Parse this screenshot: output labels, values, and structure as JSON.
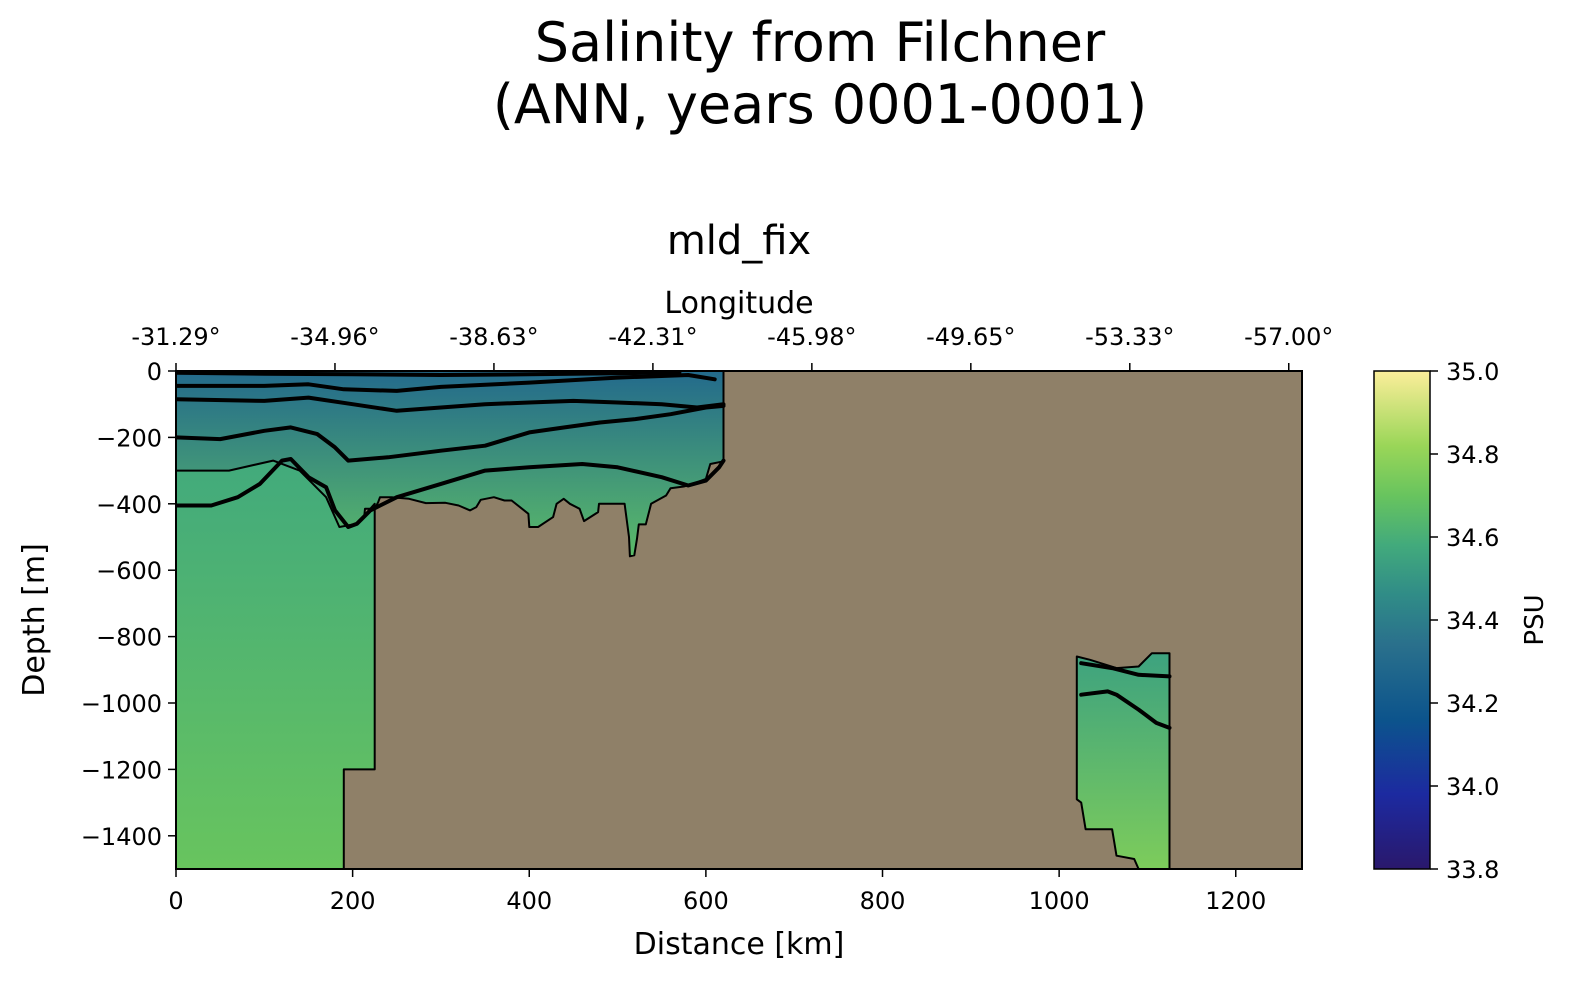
{
  "figure": {
    "title_line1": "Salinity from Filchner",
    "title_line2": "(ANN, years 0001-0001)"
  },
  "chart_data": {
    "type": "heatmap",
    "title": "mld_fix",
    "xlabel": "Distance [km]",
    "ylabel": "Depth [m]",
    "top_axis_label": "Longitude",
    "xlim": [
      0,
      1275
    ],
    "ylim": [
      -1500,
      0
    ],
    "x_ticks": [
      0,
      200,
      400,
      600,
      800,
      1000,
      1200
    ],
    "x_tick_labels": [
      "0",
      "200",
      "400",
      "600",
      "800",
      "1000",
      "1200"
    ],
    "y_ticks": [
      0,
      -200,
      -400,
      -600,
      -800,
      -1000,
      -1200,
      -1400
    ],
    "y_tick_labels": [
      "0",
      "−200",
      "−400",
      "−600",
      "−800",
      "−1000",
      "−1200",
      "−1400"
    ],
    "top_ticks": [
      0,
      180,
      360,
      540,
      720,
      900,
      1080,
      1260
    ],
    "top_tick_labels": [
      "-31.29°",
      "-34.96°",
      "-38.63°",
      "-42.31°",
      "-45.98°",
      "-49.65°",
      "-53.33°",
      "-57.00°"
    ],
    "colorbar": {
      "label": "PSU",
      "range": [
        33.8,
        35.0
      ],
      "ticks": [
        35.0,
        34.8,
        34.6,
        34.4,
        34.2,
        34.0,
        33.8
      ],
      "tick_labels": [
        "35.0",
        "34.8",
        "34.6",
        "34.4",
        "34.2",
        "34.0",
        "33.8"
      ],
      "colormap": "haline"
    },
    "land_color": "#8f8068",
    "ocean_regions": [
      {
        "name": "shelf-region",
        "top_salinity": 34.3,
        "bottom_salinity": 34.66,
        "outline": [
          [
            0,
            0
          ],
          [
            620,
            0
          ],
          [
            620,
            -272
          ],
          [
            605,
            -280
          ],
          [
            600,
            -325
          ],
          [
            585,
            -340
          ],
          [
            575,
            -348
          ],
          [
            560,
            -353
          ],
          [
            555,
            -375
          ],
          [
            538,
            -400
          ],
          [
            532,
            -462
          ],
          [
            524,
            -462
          ],
          [
            522,
            -505
          ],
          [
            519,
            -555
          ],
          [
            514,
            -558
          ],
          [
            513,
            -500
          ],
          [
            508,
            -400
          ],
          [
            495,
            -400
          ],
          [
            479,
            -400
          ],
          [
            478,
            -425
          ],
          [
            462,
            -452
          ],
          [
            457,
            -415
          ],
          [
            446,
            -400
          ],
          [
            439,
            -385
          ],
          [
            431,
            -400
          ],
          [
            427,
            -440
          ],
          [
            410,
            -470
          ],
          [
            400,
            -470
          ],
          [
            399,
            -430
          ],
          [
            380,
            -390
          ],
          [
            372,
            -390
          ],
          [
            360,
            -380
          ],
          [
            345,
            -388
          ],
          [
            340,
            -410
          ],
          [
            333,
            -420
          ],
          [
            320,
            -405
          ],
          [
            305,
            -397
          ],
          [
            283,
            -398
          ],
          [
            264,
            -385
          ],
          [
            244,
            -380
          ],
          [
            231,
            -380
          ],
          [
            229,
            -395
          ],
          [
            225,
            -415
          ],
          [
            214,
            -415
          ],
          [
            212,
            -470
          ],
          [
            200,
            -480
          ],
          [
            198,
            -472
          ],
          [
            178,
            -482
          ],
          [
            158,
            -480
          ],
          [
            125,
            -480
          ],
          [
            115,
            -470
          ],
          [
            105,
            -450
          ],
          [
            90,
            -440
          ],
          [
            80,
            -440
          ],
          [
            70,
            -430
          ],
          [
            62,
            -420
          ],
          [
            52,
            -400
          ],
          [
            40,
            -370
          ],
          [
            30,
            -360
          ],
          [
            20,
            -350
          ],
          [
            10,
            -345
          ],
          [
            0,
            -340
          ]
        ]
      },
      {
        "name": "deep-basin-region",
        "top_salinity": 34.58,
        "bottom_salinity": 34.7,
        "outline": [
          [
            0,
            -300
          ],
          [
            60,
            -300
          ],
          [
            110,
            -270
          ],
          [
            140,
            -300
          ],
          [
            170,
            -380
          ],
          [
            185,
            -470
          ],
          [
            205,
            -460
          ],
          [
            225,
            -400
          ],
          [
            225,
            -1200
          ],
          [
            190,
            -1200
          ],
          [
            190,
            -1500
          ],
          [
            0,
            -1500
          ]
        ]
      },
      {
        "name": "trough-region",
        "top_salinity": 34.55,
        "bottom_salinity": 34.75,
        "outline": [
          [
            1020,
            -860
          ],
          [
            1035,
            -870
          ],
          [
            1065,
            -895
          ],
          [
            1090,
            -890
          ],
          [
            1105,
            -850
          ],
          [
            1125,
            -850
          ],
          [
            1125,
            -1500
          ],
          [
            1090,
            -1500
          ],
          [
            1085,
            -1470
          ],
          [
            1065,
            -1460
          ],
          [
            1060,
            -1380
          ],
          [
            1030,
            -1380
          ],
          [
            1025,
            -1300
          ],
          [
            1020,
            -1290
          ]
        ]
      }
    ],
    "contour_lines": [
      {
        "name": "isohaline-1",
        "points": [
          [
            0,
            -5
          ],
          [
            100,
            -8
          ],
          [
            200,
            -10
          ],
          [
            300,
            -12
          ],
          [
            400,
            -10
          ],
          [
            500,
            -7
          ],
          [
            570,
            -4
          ]
        ]
      },
      {
        "name": "isohaline-2",
        "points": [
          [
            0,
            -45
          ],
          [
            100,
            -45
          ],
          [
            150,
            -40
          ],
          [
            190,
            -55
          ],
          [
            250,
            -60
          ],
          [
            300,
            -48
          ],
          [
            400,
            -35
          ],
          [
            500,
            -20
          ],
          [
            580,
            -12
          ],
          [
            610,
            -25
          ]
        ]
      },
      {
        "name": "isohaline-3",
        "points": [
          [
            0,
            -85
          ],
          [
            100,
            -90
          ],
          [
            150,
            -80
          ],
          [
            200,
            -100
          ],
          [
            250,
            -120
          ],
          [
            300,
            -110
          ],
          [
            350,
            -100
          ],
          [
            400,
            -95
          ],
          [
            450,
            -90
          ],
          [
            500,
            -95
          ],
          [
            550,
            -100
          ],
          [
            590,
            -110
          ],
          [
            620,
            -100
          ]
        ]
      },
      {
        "name": "isohaline-4",
        "points": [
          [
            0,
            -200
          ],
          [
            50,
            -205
          ],
          [
            100,
            -180
          ],
          [
            130,
            -170
          ],
          [
            160,
            -190
          ],
          [
            180,
            -230
          ],
          [
            195,
            -270
          ],
          [
            240,
            -260
          ],
          [
            300,
            -240
          ],
          [
            350,
            -225
          ],
          [
            400,
            -185
          ],
          [
            440,
            -170
          ],
          [
            480,
            -155
          ],
          [
            520,
            -145
          ],
          [
            560,
            -130
          ],
          [
            600,
            -110
          ],
          [
            620,
            -105
          ]
        ]
      },
      {
        "name": "isohaline-5",
        "points": [
          [
            0,
            -405
          ],
          [
            40,
            -405
          ],
          [
            70,
            -380
          ],
          [
            95,
            -340
          ],
          [
            120,
            -270
          ],
          [
            130,
            -265
          ],
          [
            150,
            -320
          ],
          [
            170,
            -350
          ],
          [
            180,
            -420
          ],
          [
            195,
            -470
          ],
          [
            205,
            -460
          ],
          [
            220,
            -420
          ],
          [
            250,
            -380
          ],
          [
            300,
            -340
          ],
          [
            350,
            -300
          ],
          [
            400,
            -290
          ],
          [
            460,
            -280
          ],
          [
            500,
            -290
          ],
          [
            550,
            -320
          ],
          [
            580,
            -345
          ],
          [
            600,
            -330
          ],
          [
            615,
            -290
          ],
          [
            620,
            -270
          ]
        ]
      },
      {
        "name": "isohaline-6",
        "points": [
          [
            1025,
            -880
          ],
          [
            1060,
            -895
          ],
          [
            1090,
            -915
          ],
          [
            1125,
            -920
          ]
        ]
      },
      {
        "name": "isohaline-7",
        "points": [
          [
            1025,
            -975
          ],
          [
            1055,
            -965
          ],
          [
            1065,
            -975
          ],
          [
            1090,
            -1020
          ],
          [
            1110,
            -1060
          ],
          [
            1125,
            -1075
          ]
        ]
      }
    ]
  }
}
